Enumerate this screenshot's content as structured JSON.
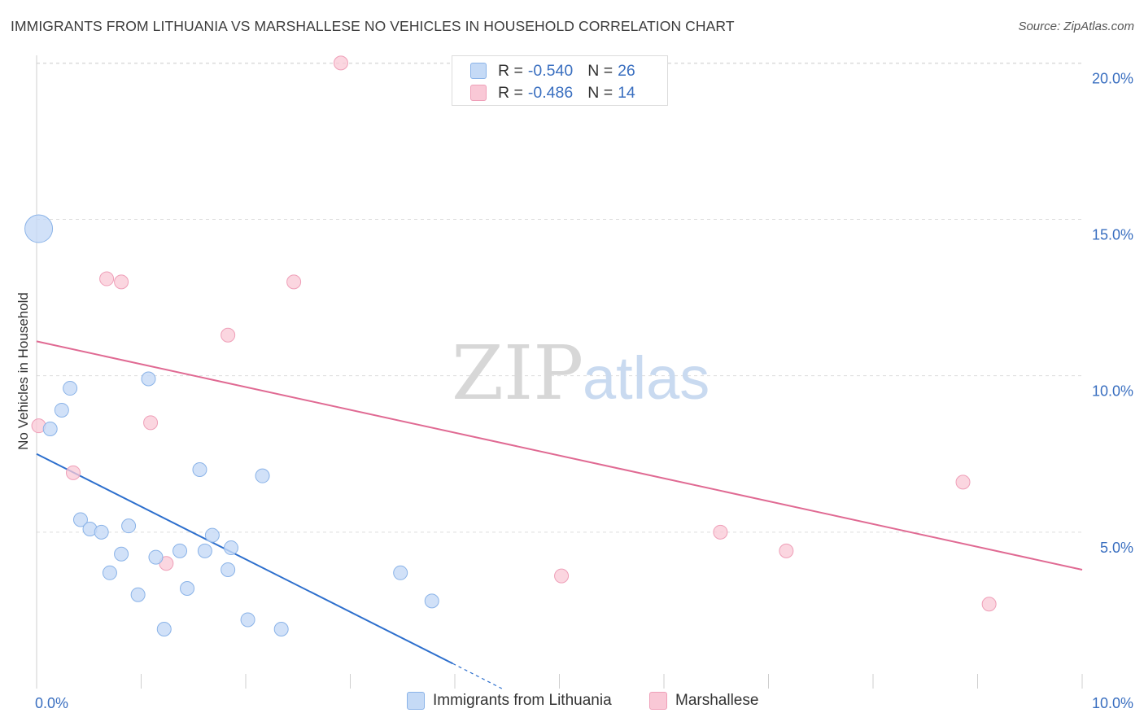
{
  "header": {
    "title": "IMMIGRANTS FROM LITHUANIA VS MARSHALLESE NO VEHICLES IN HOUSEHOLD CORRELATION CHART",
    "source": "Source: ZipAtlas.com"
  },
  "watermark": {
    "zip": "ZIP",
    "atlas": "atlas"
  },
  "stats_legend": {
    "rows": [
      {
        "r_label": "R =",
        "r_value": "-0.540",
        "n_label": "N =",
        "n_value": "26"
      },
      {
        "r_label": "R =",
        "r_value": "-0.486",
        "n_label": "N =",
        "n_value": "14"
      }
    ]
  },
  "colors": {
    "blue_fill": "#c5daf6",
    "blue_stroke": "#8ab3e8",
    "blue_line": "#2d6fcd",
    "pink_fill": "#f9c8d6",
    "pink_stroke": "#ef9fb8",
    "pink_line": "#e06a93",
    "axis_text": "#3a6fc0",
    "grid": "#dddddd"
  },
  "chart_data": {
    "type": "scatter",
    "title": "IMMIGRANTS FROM LITHUANIA VS MARSHALLESE NO VEHICLES IN HOUSEHOLD CORRELATION CHART",
    "xlabel": "",
    "ylabel": "No Vehicles in Household",
    "xlim": [
      0,
      10
    ],
    "ylim": [
      0,
      20.4
    ],
    "x_tick_labels": [
      "0.0%",
      "10.0%"
    ],
    "y_ticks": [
      5,
      10,
      15,
      20
    ],
    "y_tick_labels": [
      "5.0%",
      "10.0%",
      "15.0%",
      "20.0%"
    ],
    "grid": true,
    "legend": "bottom-center",
    "series": [
      {
        "name": "Immigrants from Lithuania",
        "color": "#8ab3e8",
        "points": [
          {
            "x": 0.02,
            "y": 14.7,
            "big": true
          },
          {
            "x": 0.13,
            "y": 8.3
          },
          {
            "x": 0.24,
            "y": 8.9
          },
          {
            "x": 0.32,
            "y": 9.6
          },
          {
            "x": 0.42,
            "y": 5.4
          },
          {
            "x": 0.51,
            "y": 5.1
          },
          {
            "x": 0.62,
            "y": 5.0
          },
          {
            "x": 0.7,
            "y": 3.7
          },
          {
            "x": 0.81,
            "y": 4.3
          },
          {
            "x": 0.88,
            "y": 5.2
          },
          {
            "x": 0.97,
            "y": 3.0
          },
          {
            "x": 1.07,
            "y": 9.9
          },
          {
            "x": 1.14,
            "y": 4.2
          },
          {
            "x": 1.22,
            "y": 1.9
          },
          {
            "x": 1.37,
            "y": 4.4
          },
          {
            "x": 1.44,
            "y": 3.2
          },
          {
            "x": 1.56,
            "y": 7.0
          },
          {
            "x": 1.61,
            "y": 4.4
          },
          {
            "x": 1.68,
            "y": 4.9
          },
          {
            "x": 1.83,
            "y": 3.8
          },
          {
            "x": 1.86,
            "y": 4.5
          },
          {
            "x": 2.02,
            "y": 2.2
          },
          {
            "x": 2.16,
            "y": 6.8
          },
          {
            "x": 2.34,
            "y": 1.9
          },
          {
            "x": 3.48,
            "y": 3.7
          },
          {
            "x": 3.78,
            "y": 2.8
          }
        ],
        "trend": {
          "x": [
            0.0,
            3.98
          ],
          "y": [
            7.5,
            0.8
          ],
          "dash_to": {
            "x": 4.45,
            "y": 0.0
          }
        }
      },
      {
        "name": "Marshallese",
        "color": "#ef9fb8",
        "points": [
          {
            "x": 0.02,
            "y": 8.4
          },
          {
            "x": 0.35,
            "y": 6.9
          },
          {
            "x": 0.67,
            "y": 13.1
          },
          {
            "x": 0.81,
            "y": 13.0
          },
          {
            "x": 1.09,
            "y": 8.5
          },
          {
            "x": 1.24,
            "y": 4.0
          },
          {
            "x": 1.83,
            "y": 11.3
          },
          {
            "x": 2.46,
            "y": 13.0
          },
          {
            "x": 2.91,
            "y": 20.0
          },
          {
            "x": 5.02,
            "y": 3.6
          },
          {
            "x": 6.54,
            "y": 5.0
          },
          {
            "x": 7.17,
            "y": 4.4
          },
          {
            "x": 8.86,
            "y": 6.6
          },
          {
            "x": 9.11,
            "y": 2.7
          }
        ],
        "trend": {
          "x": [
            0.0,
            10.0
          ],
          "y": [
            11.1,
            3.8
          ]
        }
      }
    ]
  }
}
